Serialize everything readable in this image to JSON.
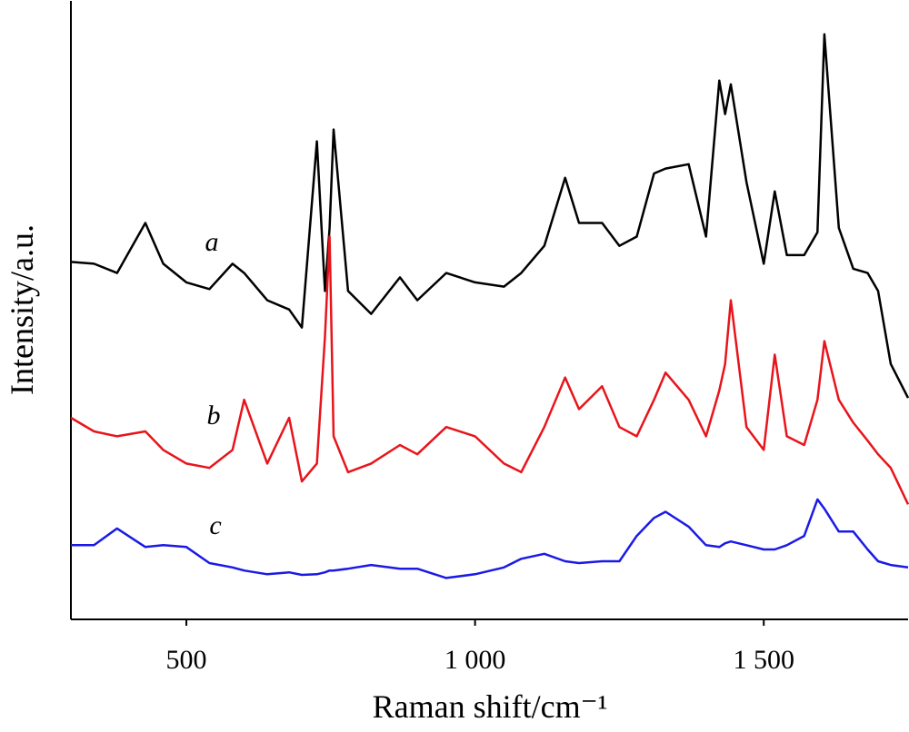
{
  "chart_data": {
    "type": "line",
    "xlabel": "Raman shift/cm⁻¹",
    "ylabel": "Intensity/a.u.",
    "xlim": [
      300,
      1750
    ],
    "ylim": [
      0,
      100
    ],
    "xticks": [
      500,
      {
        "value": 1000,
        "label": "1 000"
      },
      {
        "value": 1500,
        "label": "1 500"
      }
    ],
    "x": [
      300,
      340,
      380,
      429,
      460,
      500,
      540,
      580,
      600,
      640,
      678,
      700,
      726,
      740,
      748,
      755,
      780,
      820,
      870,
      900,
      950,
      1000,
      1050,
      1080,
      1120,
      1156,
      1180,
      1220,
      1250,
      1280,
      1310,
      1330,
      1370,
      1400,
      1423,
      1433,
      1443,
      1470,
      1500,
      1519,
      1540,
      1570,
      1593,
      1605,
      1630,
      1655,
      1680,
      1698,
      1720,
      1750
    ],
    "series": [
      {
        "name": "a",
        "color": "#000000",
        "values": [
          57.8,
          57.5,
          56.0,
          64.1,
          57.5,
          54.5,
          53.4,
          57.5,
          56.0,
          51.6,
          50.1,
          47.2,
          77.3,
          53.1,
          63.3,
          79.2,
          53.1,
          49.4,
          55.3,
          51.6,
          56.0,
          54.5,
          53.8,
          56.0,
          60.4,
          71.4,
          64.1,
          64.1,
          60.4,
          61.9,
          72.1,
          72.9,
          73.6,
          61.9,
          87.1,
          81.7,
          86.5,
          70.7,
          57.5,
          69.2,
          58.9,
          58.9,
          62.6,
          94.6,
          63.3,
          56.7,
          56.0,
          53.1,
          41.3,
          35.8
        ]
      },
      {
        "name": "b",
        "color": "#e8141b",
        "values": [
          32.6,
          30.4,
          29.6,
          30.4,
          27.4,
          25.2,
          24.5,
          27.4,
          35.5,
          25.2,
          32.6,
          22.3,
          25.2,
          45.7,
          61.9,
          29.6,
          23.8,
          25.2,
          28.2,
          26.7,
          31.1,
          29.6,
          25.2,
          23.8,
          31.1,
          39.1,
          34.0,
          37.7,
          31.1,
          29.6,
          35.5,
          39.9,
          35.5,
          29.6,
          37.0,
          41.3,
          51.6,
          31.1,
          27.4,
          42.8,
          29.6,
          28.2,
          35.5,
          45.0,
          35.5,
          31.8,
          28.9,
          26.7,
          24.5,
          18.6
        ]
      },
      {
        "name": "c",
        "color": "#1a1ae6",
        "values": [
          12.0,
          12.0,
          14.7,
          11.7,
          12.0,
          11.7,
          9.1,
          8.4,
          7.9,
          7.3,
          7.6,
          7.2,
          7.3,
          7.6,
          7.9,
          7.9,
          8.2,
          8.8,
          8.2,
          8.2,
          6.7,
          7.3,
          8.4,
          9.8,
          10.6,
          9.4,
          9.1,
          9.4,
          9.4,
          13.5,
          16.4,
          17.4,
          15.0,
          12.0,
          11.7,
          12.3,
          12.6,
          12.0,
          11.3,
          11.3,
          12.0,
          13.5,
          19.4,
          17.9,
          14.2,
          14.2,
          11.3,
          9.4,
          8.8,
          8.4
        ]
      }
    ]
  }
}
